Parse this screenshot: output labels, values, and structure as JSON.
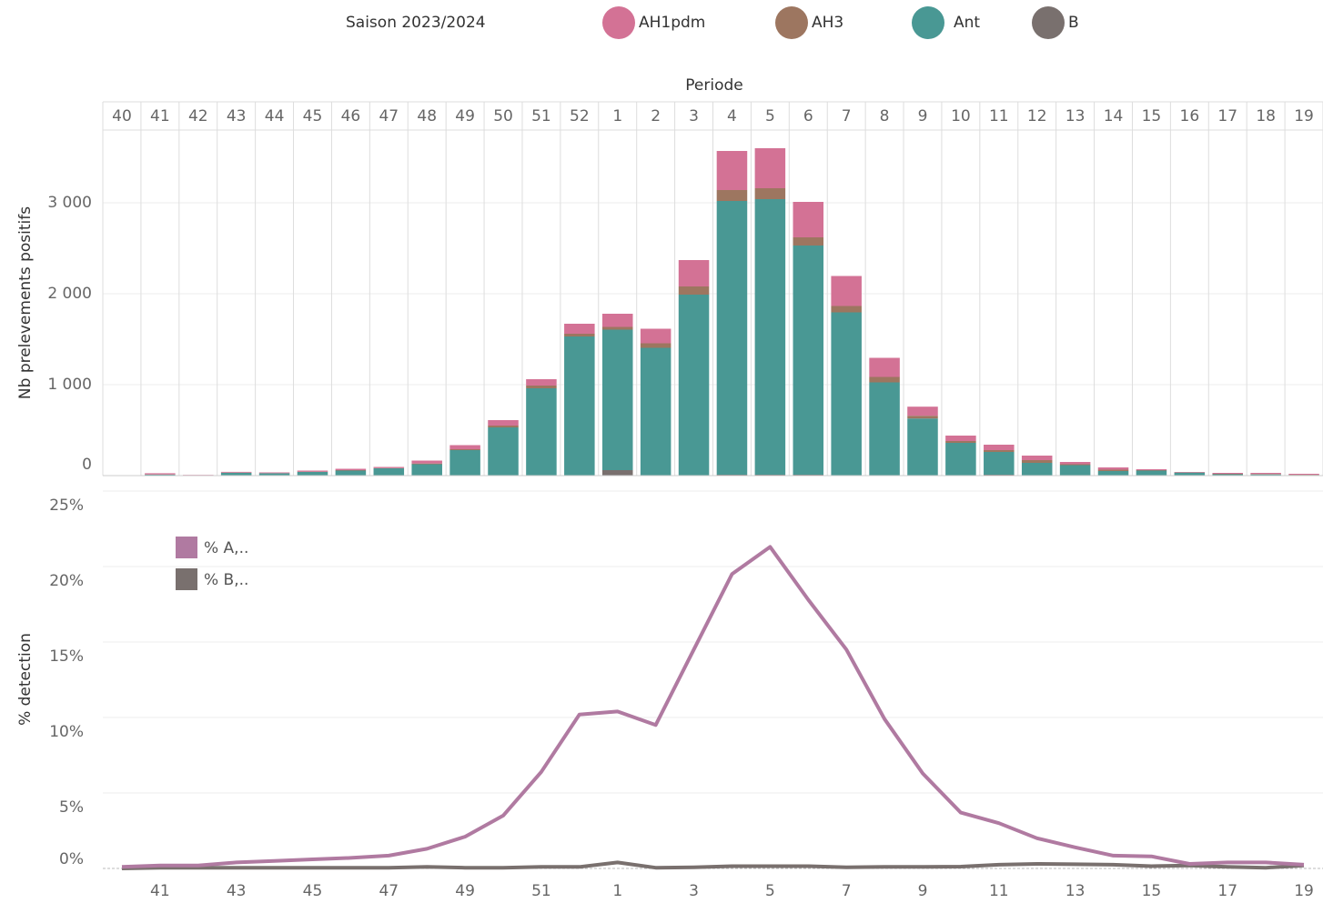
{
  "header": {
    "season": "Saison 2023/2024"
  },
  "chart_data": [
    {
      "type": "stacked_bar",
      "x_label": "Periode",
      "y_label": "Nb prelevements positifs",
      "categories": [
        40,
        41,
        42,
        43,
        44,
        45,
        46,
        47,
        48,
        49,
        50,
        51,
        52,
        1,
        2,
        3,
        4,
        5,
        6,
        7,
        8,
        9,
        10,
        11,
        12,
        13,
        14,
        15,
        16,
        17,
        18,
        19
      ],
      "series": [
        {
          "name": "AH1pdm",
          "color": "#d37295",
          "values": [
            2,
            13,
            3,
            8,
            8,
            12,
            15,
            12,
            32,
            45,
            60,
            70,
            110,
            145,
            160,
            290,
            430,
            440,
            390,
            330,
            210,
            100,
            60,
            60,
            50,
            25,
            25,
            10,
            5,
            10,
            12,
            10
          ]
        },
        {
          "name": "AH3",
          "color": "#9d7660",
          "values": [
            0,
            2,
            0,
            2,
            2,
            3,
            5,
            3,
            8,
            10,
            20,
            30,
            30,
            30,
            50,
            90,
            120,
            120,
            90,
            70,
            60,
            30,
            20,
            20,
            30,
            10,
            15,
            5,
            2,
            5,
            5,
            3
          ]
        },
        {
          "name": "Ant",
          "color": "#499894",
          "values": [
            3,
            10,
            5,
            30,
            25,
            40,
            55,
            80,
            125,
            280,
            530,
            960,
            1530,
            1545,
            1400,
            1990,
            3010,
            3030,
            2520,
            1790,
            1020,
            625,
            355,
            250,
            135,
            110,
            45,
            50,
            30,
            10,
            10,
            5
          ]
        },
        {
          "name": "B",
          "color": "#79706e",
          "values": [
            0,
            1,
            0,
            1,
            0,
            0,
            0,
            0,
            0,
            0,
            0,
            0,
            0,
            60,
            5,
            0,
            10,
            10,
            10,
            5,
            5,
            3,
            5,
            10,
            5,
            5,
            5,
            5,
            3,
            5,
            3,
            2
          ]
        }
      ],
      "ylim": [
        0,
        3800
      ],
      "yticks": [
        {
          "value": 0,
          "label": "0"
        },
        {
          "value": 1000,
          "label": "1 000"
        },
        {
          "value": 2000,
          "label": "2 000"
        },
        {
          "value": 3000,
          "label": "3 000"
        }
      ],
      "grid": true
    },
    {
      "type": "line",
      "y_label": "% detection",
      "legend": "top-left",
      "categories": [
        null,
        41,
        null,
        43,
        null,
        45,
        null,
        47,
        null,
        49,
        null,
        51,
        null,
        1,
        null,
        3,
        null,
        5,
        null,
        7,
        null,
        9,
        null,
        11,
        null,
        13,
        null,
        15,
        null,
        17,
        null,
        19
      ],
      "series": [
        {
          "name": "% A,..",
          "color": "#b07aa1",
          "values": [
            0.1,
            0.2,
            0.2,
            0.4,
            0.5,
            0.6,
            0.7,
            0.85,
            1.3,
            2.1,
            3.5,
            6.4,
            10.2,
            10.4,
            9.5,
            14.5,
            19.5,
            21.3,
            17.8,
            14.5,
            9.9,
            6.3,
            3.7,
            3.0,
            2.0,
            1.4,
            0.85,
            0.8,
            0.3,
            0.4,
            0.4,
            0.25
          ]
        },
        {
          "name": "% B,..",
          "color": "#79706e",
          "values": [
            0,
            0.05,
            0.05,
            0.05,
            0.05,
            0.05,
            0.05,
            0.05,
            0.1,
            0.05,
            0.05,
            0.1,
            0.1,
            0.4,
            0.05,
            0.08,
            0.15,
            0.15,
            0.15,
            0.08,
            0.1,
            0.1,
            0.12,
            0.25,
            0.3,
            0.28,
            0.25,
            0.15,
            0.2,
            0.1,
            0.05,
            0.2
          ]
        }
      ],
      "ylim": [
        0,
        25
      ],
      "yticks": [
        {
          "value": 0,
          "label": "0%"
        },
        {
          "value": 5,
          "label": "5%"
        },
        {
          "value": 10,
          "label": "10%"
        },
        {
          "value": 15,
          "label": "15%"
        },
        {
          "value": 20,
          "label": "20%"
        },
        {
          "value": 25,
          "label": "25%"
        }
      ],
      "grid": true
    }
  ]
}
